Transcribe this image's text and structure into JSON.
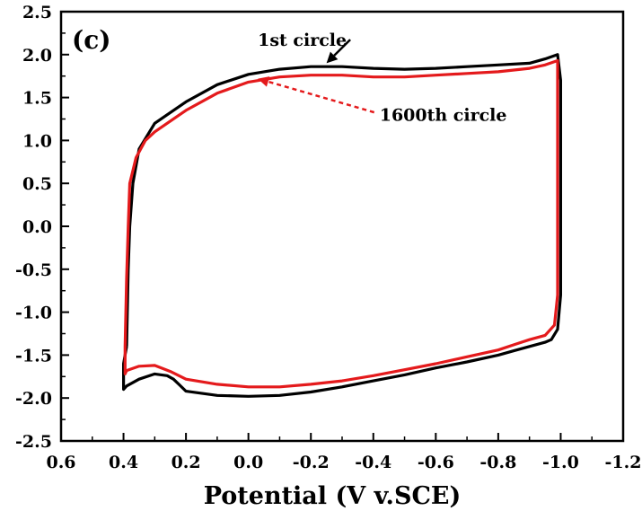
{
  "chart_data": {
    "type": "line",
    "panel_label": "(c)",
    "xlabel": "Potential (V v.SCE)",
    "ylabel": "",
    "xlim": [
      0.6,
      -1.2
    ],
    "ylim": [
      -2.5,
      2.5
    ],
    "x_reversed": true,
    "x_ticks": [
      "0.6",
      "0.4",
      "0.2",
      "0.0",
      "-0.2",
      "-0.4",
      "-0.6",
      "-0.8",
      "-1.0",
      "-1.2"
    ],
    "y_ticks": [
      "-2.5",
      "-2.0",
      "-1.5",
      "-1.0",
      "-0.5",
      "0.0",
      "0.5",
      "1.0",
      "1.5",
      "2.0",
      "2.5"
    ],
    "grid": false,
    "series": [
      {
        "name": "1st circle",
        "color": "#000000",
        "x": [
          0.39,
          0.385,
          0.38,
          0.37,
          0.35,
          0.3,
          0.2,
          0.1,
          0.0,
          -0.1,
          -0.2,
          -0.3,
          -0.4,
          -0.5,
          -0.6,
          -0.7,
          -0.8,
          -0.9,
          -0.95,
          -0.99,
          -1.0,
          -1.0,
          -1.0,
          -0.99,
          -0.97,
          -0.95,
          -0.9,
          -0.85,
          -0.8,
          -0.7,
          -0.6,
          -0.5,
          -0.4,
          -0.3,
          -0.2,
          -0.1,
          0.0,
          0.1,
          0.2,
          0.22,
          0.24,
          0.26,
          0.3,
          0.35,
          0.39,
          0.4,
          0.4,
          0.39
        ],
        "y": [
          -1.4,
          -0.5,
          0.0,
          0.5,
          0.9,
          1.2,
          1.45,
          1.65,
          1.77,
          1.83,
          1.86,
          1.86,
          1.84,
          1.83,
          1.84,
          1.86,
          1.88,
          1.9,
          1.95,
          2.0,
          1.7,
          0.5,
          -0.8,
          -1.2,
          -1.32,
          -1.35,
          -1.4,
          -1.45,
          -1.5,
          -1.58,
          -1.65,
          -1.73,
          -1.8,
          -1.87,
          -1.93,
          -1.97,
          -1.98,
          -1.97,
          -1.92,
          -1.85,
          -1.78,
          -1.74,
          -1.72,
          -1.78,
          -1.86,
          -1.9,
          -1.6,
          -1.4
        ]
      },
      {
        "name": "1600th circle",
        "color": "#e41a1c",
        "x": [
          0.395,
          0.39,
          0.385,
          0.38,
          0.36,
          0.33,
          0.3,
          0.2,
          0.1,
          0.0,
          -0.1,
          -0.2,
          -0.3,
          -0.4,
          -0.5,
          -0.6,
          -0.7,
          -0.8,
          -0.9,
          -0.95,
          -0.99,
          -0.99,
          -0.99,
          -0.98,
          -0.95,
          -0.9,
          -0.85,
          -0.8,
          -0.7,
          -0.6,
          -0.5,
          -0.4,
          -0.3,
          -0.2,
          -0.1,
          0.0,
          0.1,
          0.2,
          0.25,
          0.3,
          0.35,
          0.39,
          0.395,
          0.395
        ],
        "y": [
          -1.4,
          -0.6,
          0.0,
          0.5,
          0.8,
          1.0,
          1.1,
          1.35,
          1.55,
          1.68,
          1.74,
          1.76,
          1.76,
          1.74,
          1.74,
          1.76,
          1.78,
          1.8,
          1.84,
          1.88,
          1.93,
          1.0,
          -0.8,
          -1.15,
          -1.27,
          -1.32,
          -1.38,
          -1.44,
          -1.52,
          -1.6,
          -1.67,
          -1.74,
          -1.8,
          -1.84,
          -1.87,
          -1.87,
          -1.84,
          -1.78,
          -1.69,
          -1.62,
          -1.63,
          -1.68,
          -1.72,
          -1.4
        ]
      }
    ],
    "annotations": [
      {
        "text": "1st circle",
        "x": -0.03,
        "y": 2.1,
        "arrow_to": [
          -0.25,
          1.9
        ],
        "arrow_style": "solid",
        "color": "#000000"
      },
      {
        "text": "1600th circle",
        "x": -0.42,
        "y": 1.23,
        "arrow_to": [
          -0.03,
          1.72
        ],
        "arrow_style": "dashed",
        "color": "#e41a1c"
      }
    ]
  }
}
